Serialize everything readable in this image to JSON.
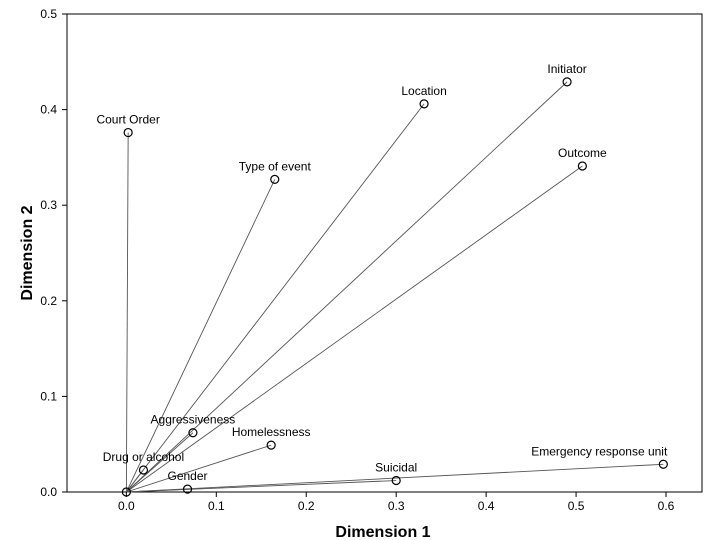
{
  "chart_data": {
    "type": "scatter",
    "title": "",
    "xlabel": "Dimension 1",
    "ylabel": "Dimension 2",
    "xlim": [
      -0.066,
      0.64
    ],
    "ylim": [
      0,
      0.5
    ],
    "xticks": [
      "0.0",
      "0.1",
      "0.2",
      "0.3",
      "0.4",
      "0.5",
      "0.6"
    ],
    "yticks": [
      "0.0",
      "0.1",
      "0.2",
      "0.3",
      "0.4",
      "0.5"
    ],
    "grid": false,
    "vectors_from_origin": true,
    "points": [
      {
        "label": "Initiator",
        "x": 0.49,
        "y": 0.429
      },
      {
        "label": "Location",
        "x": 0.331,
        "y": 0.406
      },
      {
        "label": "Court Order",
        "x": 0.002,
        "y": 0.376
      },
      {
        "label": "Outcome",
        "x": 0.507,
        "y": 0.341
      },
      {
        "label": "Type of event",
        "x": 0.165,
        "y": 0.327
      },
      {
        "label": "Aggressiveness",
        "x": 0.074,
        "y": 0.062
      },
      {
        "label": "Homelessness",
        "x": 0.161,
        "y": 0.049
      },
      {
        "label": "Emergency response unit",
        "x": 0.597,
        "y": 0.029
      },
      {
        "label": "Drug or alcohol",
        "x": 0.019,
        "y": 0.023
      },
      {
        "label": "Suicidal",
        "x": 0.3,
        "y": 0.012
      },
      {
        "label": "Gender",
        "x": 0.068,
        "y": 0.003
      }
    ]
  }
}
